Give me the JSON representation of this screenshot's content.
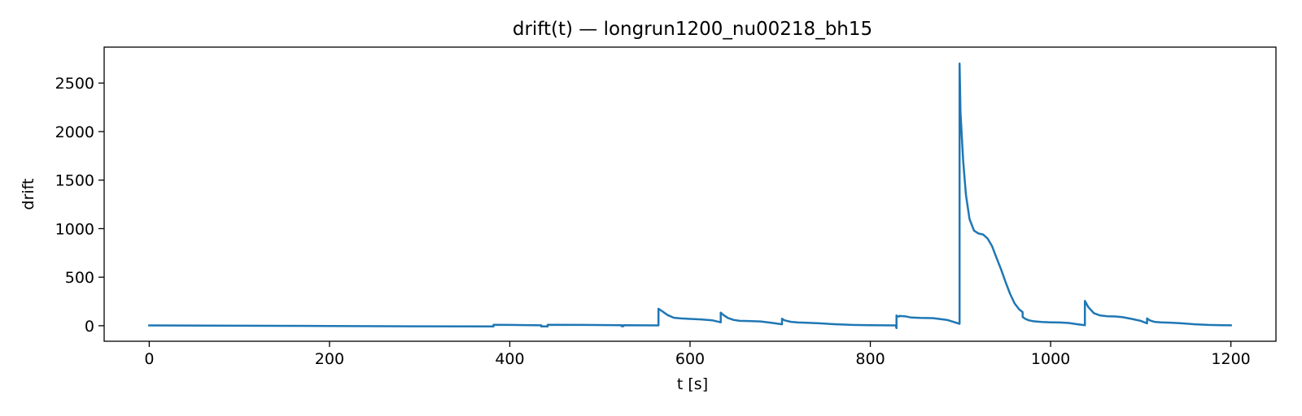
{
  "chart_data": {
    "type": "line",
    "title": "drift(t) — longrun1200_nu00218_bh15",
    "xlabel": "t [s]",
    "ylabel": "drift",
    "xlim": [
      -50,
      1250
    ],
    "ylim": [
      -160,
      2870
    ],
    "xticks": [
      0,
      200,
      400,
      600,
      800,
      1000,
      1200
    ],
    "yticks": [
      0,
      500,
      1000,
      1500,
      2000,
      2500
    ],
    "grid": false,
    "series": [
      {
        "color": "#1f77b4",
        "x": [
          0,
          100,
          200,
          300,
          382,
          382,
          400,
          435,
          435,
          442,
          442,
          480,
          524,
          524,
          526,
          526,
          565,
          565,
          569,
          575,
          582,
          590,
          600,
          612,
          625,
          634,
          634,
          637,
          642,
          648,
          655,
          665,
          678,
          690,
          702,
          702,
          705,
          712,
          720,
          730,
          745,
          760,
          780,
          800,
          815,
          828,
          829,
          829,
          830,
          832,
          832,
          838,
          845,
          855,
          870,
          885,
          899,
          899,
          900,
          903,
          906,
          910,
          915,
          920,
          925,
          930,
          935,
          940,
          945,
          950,
          955,
          960,
          965,
          969,
          969,
          972,
          976,
          982,
          990,
          1000,
          1010,
          1020,
          1030,
          1038,
          1038,
          1042,
          1048,
          1055,
          1063,
          1072,
          1080,
          1090,
          1100,
          1107,
          1107,
          1110,
          1115,
          1122,
          1132,
          1145,
          1160,
          1175,
          1190,
          1200
        ],
        "y": [
          3,
          0,
          -3,
          -6,
          -8,
          10,
          8,
          4,
          -8,
          -8,
          10,
          8,
          5,
          -5,
          -5,
          5,
          3,
          175,
          150,
          110,
          82,
          75,
          70,
          65,
          55,
          35,
          135,
          110,
          80,
          60,
          50,
          48,
          44,
          30,
          15,
          72,
          55,
          40,
          33,
          30,
          24,
          16,
          8,
          5,
          4,
          3,
          -25,
          105,
          95,
          95,
          100,
          98,
          85,
          80,
          78,
          60,
          20,
          2700,
          2200,
          1700,
          1350,
          1100,
          980,
          950,
          940,
          900,
          820,
          700,
          580,
          450,
          330,
          230,
          170,
          140,
          90,
          70,
          55,
          45,
          38,
          35,
          33,
          28,
          15,
          5,
          255,
          190,
          130,
          105,
          98,
          95,
          88,
          70,
          50,
          25,
          75,
          55,
          40,
          35,
          32,
          25,
          15,
          8,
          5,
          4
        ]
      }
    ]
  }
}
